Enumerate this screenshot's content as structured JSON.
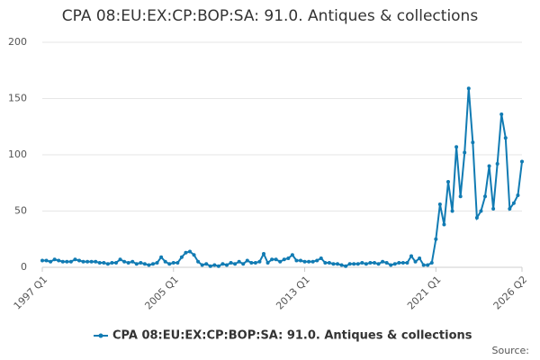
{
  "chart_data": {
    "type": "line",
    "title": "CPA 08:EU:EX:CP:BOP:SA: 91.0. Antiques & collections",
    "source": "Source:",
    "categories": [
      "1997 Q1",
      null,
      null,
      null,
      null,
      null,
      null,
      null,
      null,
      null,
      null,
      null,
      null,
      null,
      null,
      null,
      null,
      null,
      null,
      null,
      null,
      null,
      null,
      null,
      null,
      null,
      null,
      null,
      null,
      null,
      null,
      null,
      "2005 Q1",
      null,
      null,
      null,
      null,
      null,
      null,
      null,
      null,
      null,
      null,
      null,
      null,
      null,
      null,
      null,
      null,
      null,
      null,
      null,
      null,
      null,
      null,
      null,
      null,
      null,
      null,
      null,
      null,
      null,
      null,
      null,
      "2013 Q1",
      null,
      null,
      null,
      null,
      null,
      null,
      null,
      null,
      null,
      null,
      null,
      null,
      null,
      null,
      null,
      null,
      null,
      null,
      null,
      null,
      null,
      null,
      null,
      null,
      null,
      null,
      null,
      null,
      null,
      null,
      null,
      "2021 Q1",
      null,
      null,
      null,
      null,
      null,
      null,
      null,
      null,
      null,
      null,
      null,
      null,
      null,
      null,
      null,
      null,
      null,
      null,
      null,
      null,
      "2026 Q2"
    ],
    "series": [
      {
        "name": "CPA 08:EU:EX:CP:BOP:SA: 91.0. Antiques & collections",
        "color": "#117bb3",
        "values": [
          6,
          6,
          5,
          7,
          6,
          5,
          5,
          5,
          7,
          6,
          5,
          5,
          5,
          5,
          4,
          4,
          3,
          4,
          4,
          7,
          5,
          4,
          5,
          3,
          4,
          3,
          2,
          3,
          4,
          9,
          5,
          3,
          4,
          4,
          9,
          13,
          14,
          11,
          5,
          2,
          3,
          1,
          2,
          1,
          3,
          2,
          4,
          3,
          5,
          3,
          6,
          4,
          4,
          5,
          12,
          4,
          7,
          7,
          5,
          7,
          8,
          11,
          6,
          6,
          5,
          5,
          5,
          6,
          8,
          4,
          4,
          3,
          3,
          2,
          1,
          3,
          3,
          3,
          4,
          3,
          4,
          4,
          3,
          5,
          4,
          2,
          3,
          4,
          4,
          4,
          10,
          5,
          8,
          2,
          2,
          4,
          25,
          56,
          38,
          76,
          50,
          107,
          63,
          102,
          159,
          111,
          44,
          50,
          63,
          90,
          52,
          92,
          136,
          115,
          52,
          57,
          64,
          94
        ]
      }
    ],
    "ylim": [
      0,
      200
    ],
    "yticks": [
      0,
      50,
      100,
      150,
      200
    ],
    "grid": true
  }
}
